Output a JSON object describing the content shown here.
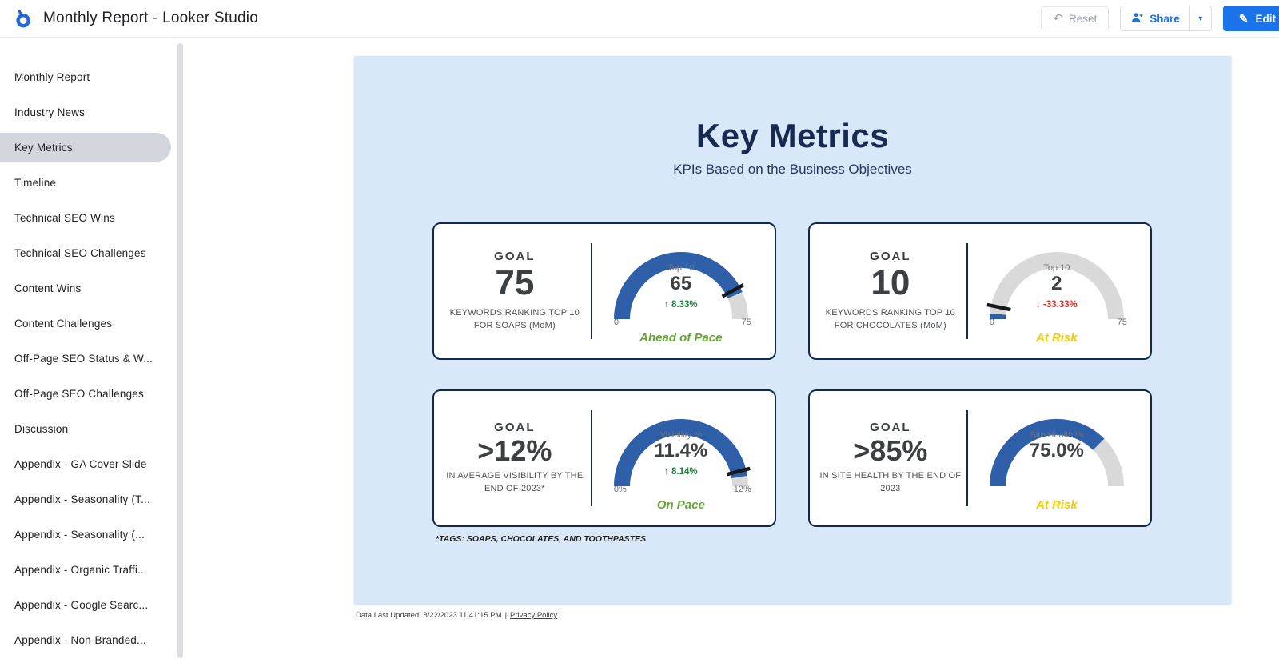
{
  "header": {
    "app_title": "Monthly Report - Looker Studio",
    "reset_label": "Reset",
    "share_label": "Share",
    "edit_label": "Edit"
  },
  "sidebar": {
    "items": [
      {
        "label": "Monthly Report",
        "selected": false
      },
      {
        "label": "Industry News",
        "selected": false
      },
      {
        "label": "Key Metrics",
        "selected": true
      },
      {
        "label": "Timeline",
        "selected": false
      },
      {
        "label": "Technical SEO Wins",
        "selected": false
      },
      {
        "label": "Technical SEO Challenges",
        "selected": false
      },
      {
        "label": "Content Wins",
        "selected": false
      },
      {
        "label": "Content Challenges",
        "selected": false
      },
      {
        "label": "Off-Page SEO Status & W...",
        "selected": false
      },
      {
        "label": "Off-Page SEO Challenges",
        "selected": false
      },
      {
        "label": "Discussion",
        "selected": false
      },
      {
        "label": "Appendix - GA Cover Slide",
        "selected": false
      },
      {
        "label": "Appendix - Seasonality (T...",
        "selected": false
      },
      {
        "label": "Appendix - Seasonality (...",
        "selected": false
      },
      {
        "label": "Appendix - Organic Traffi...",
        "selected": false
      },
      {
        "label": "Appendix - Google Searc...",
        "selected": false
      },
      {
        "label": "Appendix - Non-Branded...",
        "selected": false
      }
    ]
  },
  "canvas": {
    "title": "Key Metrics",
    "subtitle": "KPIs Based on the Business Objectives",
    "footnote": "*TAGS: SOAPS, CHOCOLATES, AND TOOTHPASTES",
    "footer_updated": "Data Last Updated: 8/22/2023 11:41:15 PM",
    "footer_separator": "|",
    "footer_privacy": "Privacy Policy"
  },
  "colors": {
    "gauge_fill": "#2e5fa8",
    "gauge_track": "#d9d9d9",
    "marker": "#14181c",
    "accent_blue": "#1a73e8",
    "canvas_bg": "#d9e8f8",
    "card_border": "#102a4e",
    "status_green": "#69a23b",
    "status_yellow": "#f2cb05",
    "delta_green": "#188038",
    "delta_red": "#d93025"
  },
  "cards": [
    {
      "goal_label": "GOAL",
      "goal_value": "75",
      "description": "KEYWORDS RANKING TOP 10 FOR SOAPS (MoM)",
      "gauge": {
        "metric": "Top 10",
        "value": "65",
        "delta": "↑ 8.33%",
        "delta_color": "#188038",
        "axis_min": "0",
        "axis_max": "75",
        "fill_pct": 86.7,
        "marker_pct": 84
      },
      "status": "Ahead of Pace",
      "status_color": "#69a23b"
    },
    {
      "goal_label": "GOAL",
      "goal_value": "10",
      "description": "KEYWORDS RANKING TOP 10 FOR CHOCOLATES (MoM)",
      "gauge": {
        "metric": "Top 10",
        "value": "2",
        "delta": "↓ -33.33%",
        "delta_color": "#d93025",
        "axis_min": "0",
        "axis_max": "75",
        "fill_pct": 2.7,
        "marker_pct": 6.5
      },
      "status": "At Risk",
      "status_color": "#f2cb05"
    },
    {
      "goal_label": "GOAL",
      "goal_value": ">12%",
      "description": "IN AVERAGE VISIBILITY BY THE END OF 2023*",
      "gauge": {
        "metric": "Visibility %",
        "value": "11.4%",
        "delta": "↑ 8.14%",
        "delta_color": "#188038",
        "axis_min": "0%",
        "axis_max": "12%",
        "fill_pct": 95,
        "marker_pct": 92
      },
      "status": "On Pace",
      "status_color": "#69a23b"
    },
    {
      "goal_label": "GOAL",
      "goal_value": ">85%",
      "description": "IN SITE HEALTH BY THE END OF 2023",
      "gauge": {
        "metric": "Site Health %",
        "value": "75.0%",
        "delta": null,
        "delta_color": null,
        "axis_min": null,
        "axis_max": null,
        "fill_pct": 75,
        "marker_pct": null
      },
      "status": "At Risk",
      "status_color": "#f2cb05"
    }
  ],
  "chart_data": [
    {
      "type": "gauge",
      "title": "Keywords Ranking Top 10 for Soaps (MoM)",
      "value": 65,
      "goal": 75,
      "range": [
        0,
        75
      ],
      "delta_pct": 8.33,
      "status": "Ahead of Pace"
    },
    {
      "type": "gauge",
      "title": "Keywords Ranking Top 10 for Chocolates (MoM)",
      "value": 2,
      "goal": 10,
      "range": [
        0,
        75
      ],
      "delta_pct": -33.33,
      "status": "At Risk"
    },
    {
      "type": "gauge",
      "title": "Average Visibility by the End of 2023",
      "unit": "%",
      "value": 11.4,
      "goal": 12,
      "range": [
        0,
        12
      ],
      "delta_pct": 8.14,
      "status": "On Pace"
    },
    {
      "type": "gauge",
      "title": "Site Health by the End of 2023",
      "unit": "%",
      "value": 75.0,
      "goal": 85,
      "range": [
        0,
        100
      ],
      "status": "At Risk"
    }
  ]
}
